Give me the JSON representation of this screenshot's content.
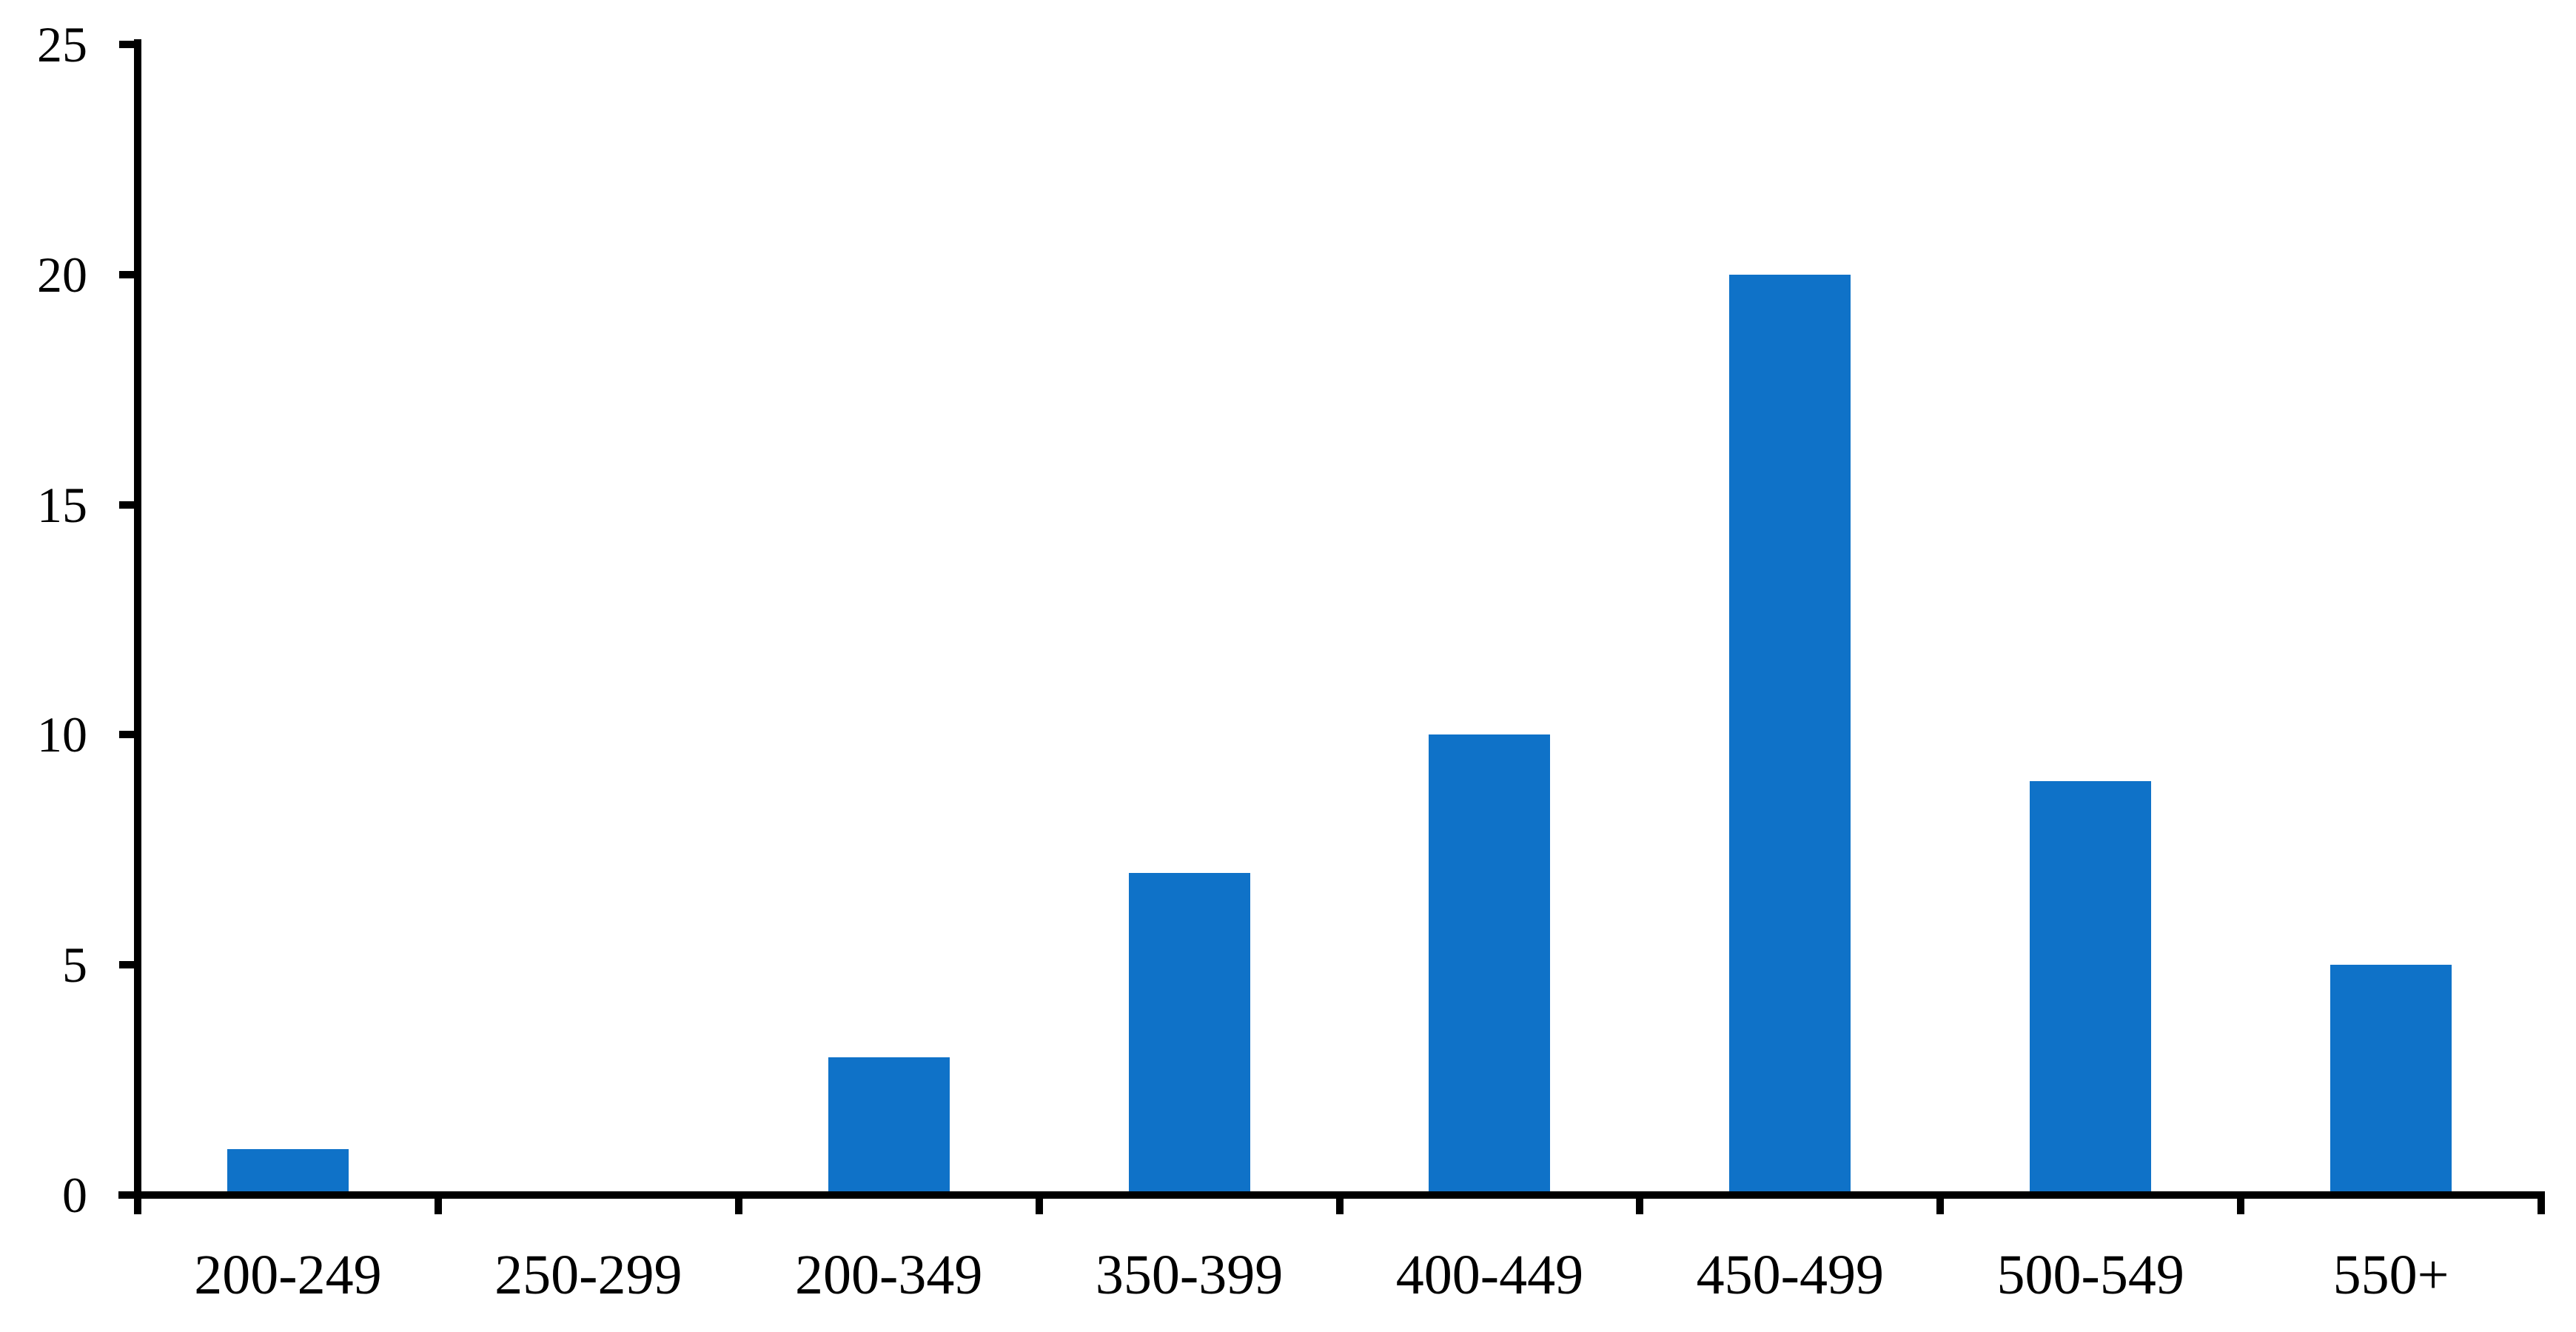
{
  "chart_data": {
    "type": "bar",
    "categories": [
      "200-249",
      "250-299",
      "200-349",
      "350-399",
      "400-449",
      "450-499",
      "500-549",
      "550+"
    ],
    "values": [
      1,
      0,
      3,
      7,
      10,
      20,
      9,
      5
    ],
    "title": "",
    "xlabel": "",
    "ylabel": "",
    "ylim": [
      0,
      25
    ],
    "yticks": [
      0,
      5,
      10,
      15,
      20,
      25
    ],
    "grid": false,
    "legend_position": "none",
    "bar_color": "#0F72C8",
    "axis_color": "#000000",
    "background_color": "#FFFFFF"
  }
}
